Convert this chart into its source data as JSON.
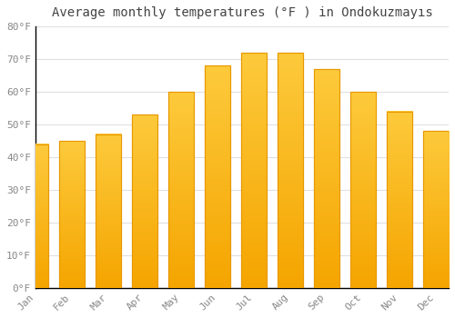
{
  "title": "Average monthly temperatures (°F ) in Ondokuzmayıs",
  "months": [
    "Jan",
    "Feb",
    "Mar",
    "Apr",
    "May",
    "Jun",
    "Jul",
    "Aug",
    "Sep",
    "Oct",
    "Nov",
    "Dec"
  ],
  "values": [
    44,
    45,
    47,
    53,
    60,
    68,
    72,
    72,
    67,
    60,
    54,
    48
  ],
  "bar_color_top": "#FDCA3C",
  "bar_color_bottom": "#F5A500",
  "bar_edge_color": "#E89800",
  "background_color": "#FFFFFF",
  "grid_color": "#E0E0E0",
  "title_color": "#444444",
  "tick_color": "#888888",
  "spine_color": "#000000",
  "ylim": [
    0,
    80
  ],
  "ytick_step": 10,
  "title_fontsize": 10,
  "tick_fontsize": 8,
  "bar_width": 0.7
}
